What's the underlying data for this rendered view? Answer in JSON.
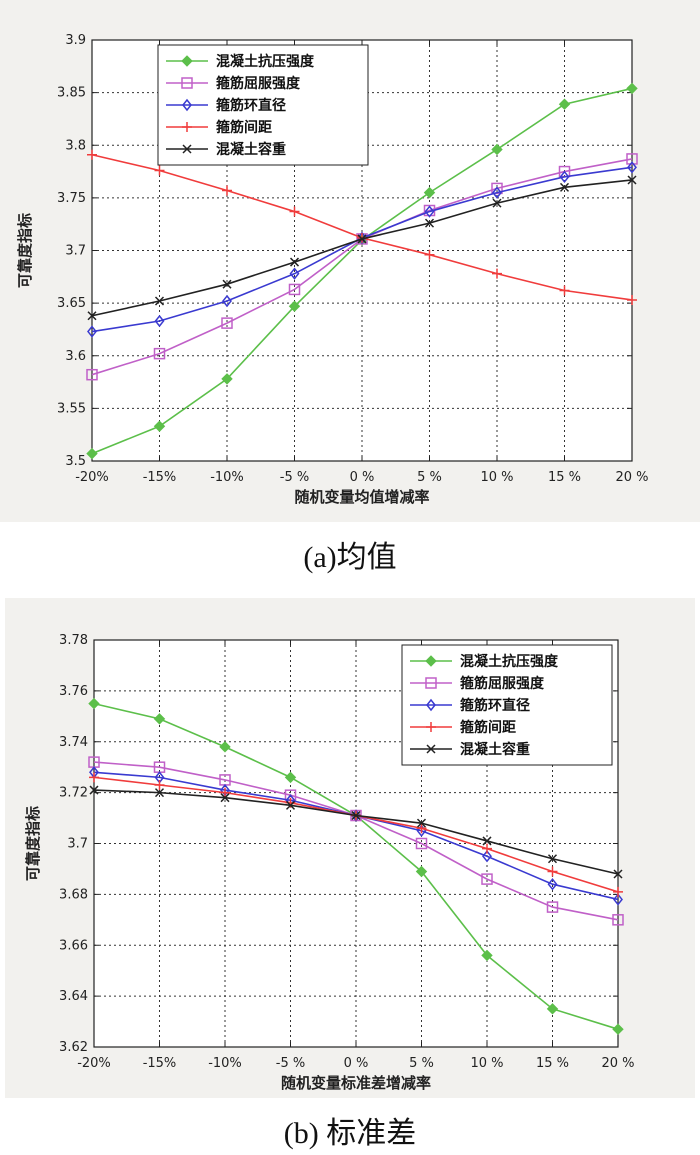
{
  "chart_data": [
    {
      "type": "line",
      "caption": "(a)均值",
      "xlabel": "随机变量均值增减率",
      "ylabel": "可靠度指标",
      "categories": [
        "-20%",
        "-15%",
        "-10%",
        "-5 %",
        "0 %",
        "5 %",
        "10 %",
        "15 %",
        "20 %"
      ],
      "ylim": [
        3.5,
        3.9
      ],
      "yticks": [
        "3.5",
        "3.55",
        "3.6",
        "3.65",
        "3.7",
        "3.75",
        "3.8",
        "3.85",
        "3.9"
      ],
      "grid": true,
      "legend_position": "top-left",
      "series": [
        {
          "name": "混凝土抗压强度",
          "color": "#5cbf4a",
          "marker": "diamond-filled",
          "values": [
            3.507,
            3.533,
            3.578,
            3.647,
            3.71,
            3.755,
            3.796,
            3.839,
            3.854
          ]
        },
        {
          "name": "箍筋屈服强度",
          "color": "#c060c8",
          "marker": "square",
          "values": [
            3.582,
            3.602,
            3.631,
            3.663,
            3.711,
            3.738,
            3.759,
            3.775,
            3.787
          ]
        },
        {
          "name": "箍筋环直径",
          "color": "#3a3ad0",
          "marker": "diamond",
          "values": [
            3.623,
            3.633,
            3.652,
            3.678,
            3.712,
            3.737,
            3.755,
            3.77,
            3.779
          ]
        },
        {
          "name": "箍筋间距",
          "color": "#f03c3c",
          "marker": "plus",
          "values": [
            3.791,
            3.776,
            3.757,
            3.737,
            3.712,
            3.696,
            3.678,
            3.662,
            3.653
          ]
        },
        {
          "name": "混凝土容重",
          "color": "#222222",
          "marker": "x",
          "values": [
            3.638,
            3.652,
            3.668,
            3.689,
            3.711,
            3.726,
            3.745,
            3.76,
            3.767
          ]
        }
      ]
    },
    {
      "type": "line",
      "caption": "(b) 标准差",
      "xlabel": "随机变量标准差增减率",
      "ylabel": "可靠度指标",
      "categories": [
        "-20%",
        "-15%",
        "-10%",
        "-5 %",
        "0 %",
        "5 %",
        "10 %",
        "15 %",
        "20 %"
      ],
      "ylim": [
        3.62,
        3.78
      ],
      "yticks": [
        "3.62",
        "3.64",
        "3.66",
        "3.68",
        "3.7",
        "3.72",
        "3.74",
        "3.76",
        "3.78"
      ],
      "grid": true,
      "legend_position": "top-right",
      "series": [
        {
          "name": "混凝土抗压强度",
          "color": "#5cbf4a",
          "marker": "diamond-filled",
          "values": [
            3.755,
            3.749,
            3.738,
            3.726,
            3.711,
            3.689,
            3.656,
            3.635,
            3.627
          ]
        },
        {
          "name": "箍筋屈服强度",
          "color": "#c060c8",
          "marker": "square",
          "values": [
            3.732,
            3.73,
            3.725,
            3.719,
            3.711,
            3.7,
            3.686,
            3.675,
            3.67
          ]
        },
        {
          "name": "箍筋环直径",
          "color": "#3a3ad0",
          "marker": "diamond",
          "values": [
            3.728,
            3.726,
            3.721,
            3.717,
            3.711,
            3.705,
            3.695,
            3.684,
            3.678
          ]
        },
        {
          "name": "箍筋间距",
          "color": "#f03c3c",
          "marker": "plus",
          "values": [
            3.726,
            3.723,
            3.72,
            3.716,
            3.711,
            3.706,
            3.698,
            3.689,
            3.681
          ]
        },
        {
          "name": "混凝土容重",
          "color": "#222222",
          "marker": "x",
          "values": [
            3.721,
            3.72,
            3.718,
            3.715,
            3.711,
            3.708,
            3.701,
            3.694,
            3.688
          ]
        }
      ]
    }
  ]
}
